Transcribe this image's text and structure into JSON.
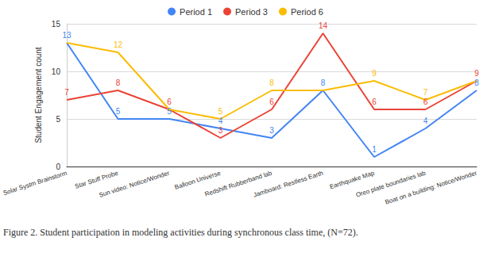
{
  "chart_data": {
    "type": "line",
    "caption": "Figure 2. Student participation in modeling activities during synchronous class time, (N=72).",
    "y_label": "Student Engagement count",
    "categories": [
      "Solar Systm Brainstorm",
      "Star Stuff Probe",
      "Sun video: Notice/Wonder",
      "Balloon Universe",
      "Redshift Rubberband lab",
      "Jamboard: Restless Earth",
      "Earthquake Map",
      "Oreo plate boundaries lab",
      "Boat on a building: Notice/Wonder"
    ],
    "series": [
      {
        "name": "Period 1",
        "color": "#4285f4",
        "values": [
          13,
          5,
          5,
          4,
          3,
          8,
          1,
          4,
          8
        ]
      },
      {
        "name": "Period 3",
        "color": "#ea4335",
        "values": [
          7,
          8,
          6,
          3,
          6,
          14,
          6,
          6,
          9
        ]
      },
      {
        "name": "Period 6",
        "color": "#fbbc04",
        "values": [
          13,
          12,
          6,
          5,
          8,
          8,
          9,
          7,
          9
        ]
      }
    ],
    "ylim": [
      0,
      15
    ],
    "yticks": [
      0,
      5,
      10,
      15
    ],
    "grid": true,
    "legend": "top",
    "data_labels": true
  }
}
